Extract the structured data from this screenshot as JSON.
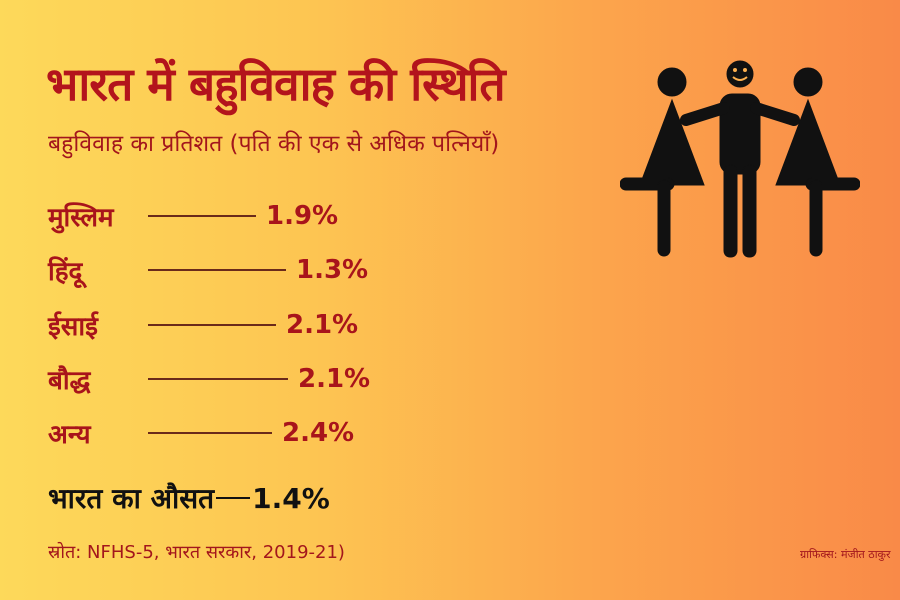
{
  "header": {
    "title": "भारत में बहुविवाह की स्थिति",
    "subtitle": "बहुविवाह का प्रतिशत (पति की एक से अधिक पत्नियाँ)"
  },
  "chart_data": {
    "type": "bar",
    "title": "भारत में बहुविवाह की स्थिति",
    "ylabel": "बहुविवाह का प्रतिशत (पति की एक से अधिक पत्नियाँ)",
    "categories": [
      "मुस्लिम",
      "हिंदू",
      "ईसाई",
      "बौद्ध",
      "अन्य"
    ],
    "values": [
      1.9,
      1.3,
      2.1,
      2.1,
      2.4
    ],
    "value_labels": [
      "1.9%",
      "1.3%",
      "2.1%",
      "2.1%",
      "2.4%"
    ],
    "average": {
      "label": "भारत का औसत",
      "value": 1.4,
      "value_label": "1.4%"
    }
  },
  "footer": {
    "source": "स्रोत: NFHS-5, भारत सरकार, 2019-21)",
    "credit": "ग्राफिक्स: मंजीत ठाकुर"
  },
  "colors": {
    "accent": "#b3141c",
    "bg_left": "#fdd95a",
    "bg_right": "#f98a48"
  },
  "icon": "polygamy-family-icon"
}
